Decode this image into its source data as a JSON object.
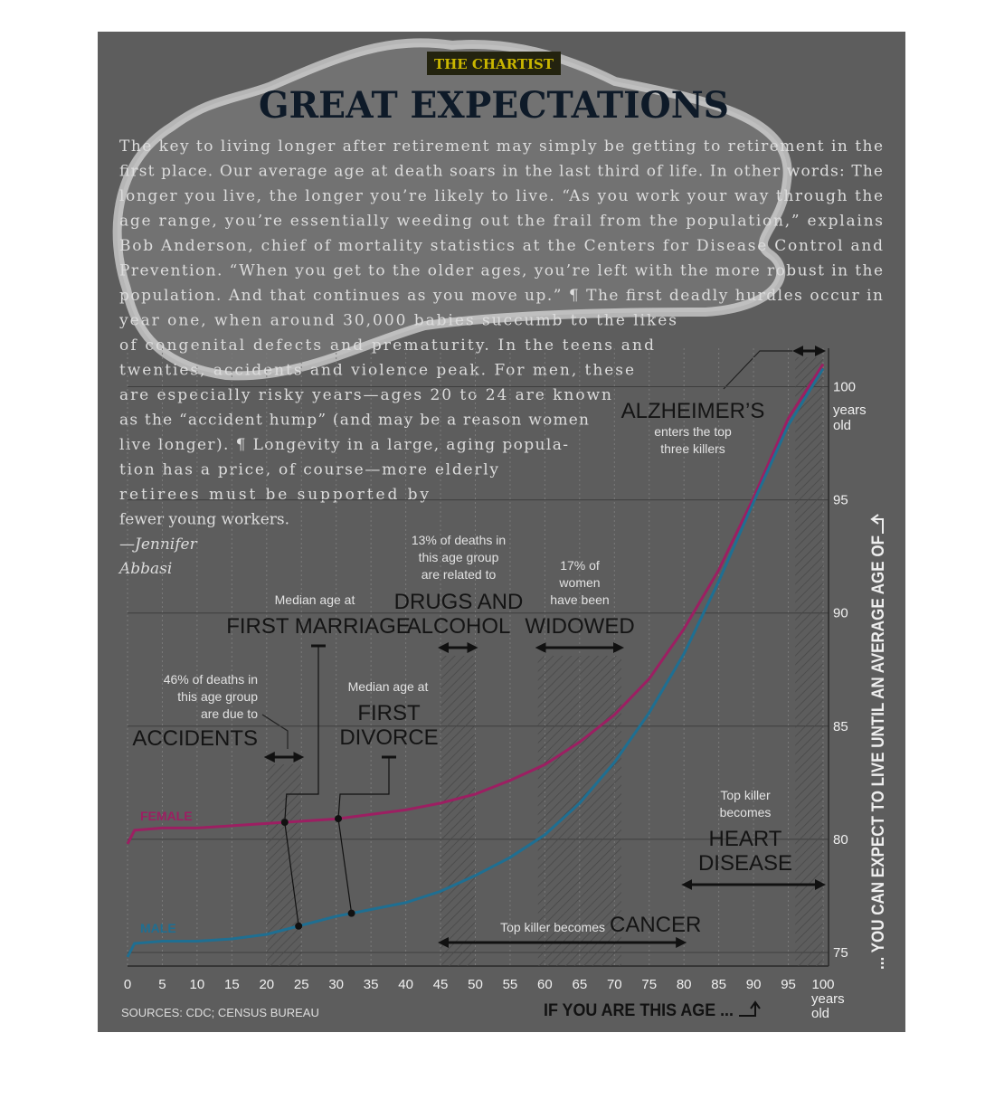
{
  "chart_data": {
    "type": "line",
    "kicker": "THE CHARTIST",
    "title": "GREAT EXPECTATIONS",
    "body_lines": [
      "The key to living longer after retirement may simply be getting to retirement in the",
      "first place. Our average age at death soars in the last third of life. In other words: The",
      "longer you live, the longer you’re likely to live. “As you work your way through the",
      "age range, you’re essentially weeding out the frail from the population,” explains",
      "Bob Anderson, chief of mortality statistics at the Centers for Disease Control and",
      "Prevention. “When you get to the older ages, you’re left with the more robust in the",
      "population. And that continues as you move up.” ¶ The first deadly hurdles occur in",
      "year one, when around 30,000 babies succumb to the likes",
      "of congenital defects and prematurity. In the teens and",
      "twenties, accidents and violence peak. For men, these",
      "are especially risky years—ages 20 to 24 are known",
      "as the “accident hump” (and may be a reason women",
      "live longer). ¶ Longevity in a large, aging popula-",
      "tion has a price, of course—more elderly",
      "retirees must be supported by",
      "fewer young workers."
    ],
    "byline": [
      "—Jennifer",
      "Abbasi"
    ],
    "x_label": "IF YOU ARE THIS AGE ...",
    "y_label": "... YOU CAN EXPECT TO LIVE UNTIL AN AVERAGE AGE OF",
    "source": "SOURCES: CDC; CENSUS BUREAU",
    "x": [
      0,
      1,
      5,
      10,
      15,
      20,
      25,
      30,
      35,
      40,
      45,
      50,
      55,
      60,
      65,
      70,
      75,
      80,
      85,
      90,
      95,
      100
    ],
    "series": [
      {
        "name": "FEMALE",
        "color": "#9c1f62",
        "values": [
          79.8,
          80.4,
          80.5,
          80.5,
          80.6,
          80.7,
          80.8,
          80.9,
          81.1,
          81.3,
          81.6,
          82.0,
          82.6,
          83.3,
          84.3,
          85.5,
          87.1,
          89.3,
          91.9,
          95.1,
          98.6,
          101.0
        ]
      },
      {
        "name": "MALE",
        "color": "#1f6f92",
        "values": [
          74.8,
          75.4,
          75.5,
          75.5,
          75.6,
          75.8,
          76.2,
          76.6,
          76.9,
          77.2,
          77.7,
          78.4,
          79.2,
          80.2,
          81.6,
          83.4,
          85.6,
          88.2,
          91.4,
          94.9,
          98.3,
          100.8
        ]
      }
    ],
    "xlim": [
      0,
      100
    ],
    "xticks": [
      0,
      5,
      10,
      15,
      20,
      25,
      30,
      35,
      40,
      45,
      50,
      55,
      60,
      65,
      70,
      75,
      80,
      85,
      90,
      95,
      100
    ],
    "x_tick_unit": [
      "years",
      "old"
    ],
    "ylim": [
      74.4,
      101.7
    ],
    "yticks": [
      75,
      80,
      85,
      90,
      95,
      100
    ],
    "y_tick_unit": [
      "years",
      "old"
    ],
    "grid": true,
    "annotations": [
      {
        "label": [
          "ALZHEIMER’S"
        ],
        "note": [
          "enters the top",
          "three killers"
        ],
        "range": [
          96,
          100
        ]
      },
      {
        "note": [
          "Median age at"
        ],
        "label": [
          "FIRST MARRIAGE"
        ],
        "female": 22.6,
        "male": 24.6
      },
      {
        "note": [
          "13% of deaths in",
          "this age group",
          "are related to"
        ],
        "label": [
          "DRUGS AND",
          "ALCOHOL"
        ],
        "range": [
          45,
          50
        ]
      },
      {
        "note": [
          "17% of",
          "women",
          "have been"
        ],
        "label": [
          "WIDOWED"
        ],
        "range": [
          59,
          71
        ]
      },
      {
        "note": [
          "46% of deaths in",
          "this age group",
          "are due to"
        ],
        "label": [
          "ACCIDENTS"
        ],
        "range": [
          20,
          25
        ]
      },
      {
        "note": [
          "Median age at"
        ],
        "label": [
          "FIRST",
          "DIVORCE"
        ],
        "female": 30.3,
        "male": 32.2
      },
      {
        "note": [
          "Top killer",
          "becomes"
        ],
        "label": [
          "HEART",
          "DISEASE"
        ],
        "range": [
          80,
          100
        ]
      },
      {
        "note": [
          "Top killer becomes"
        ],
        "label": [
          "CANCER"
        ],
        "range": [
          45,
          80
        ]
      }
    ]
  }
}
